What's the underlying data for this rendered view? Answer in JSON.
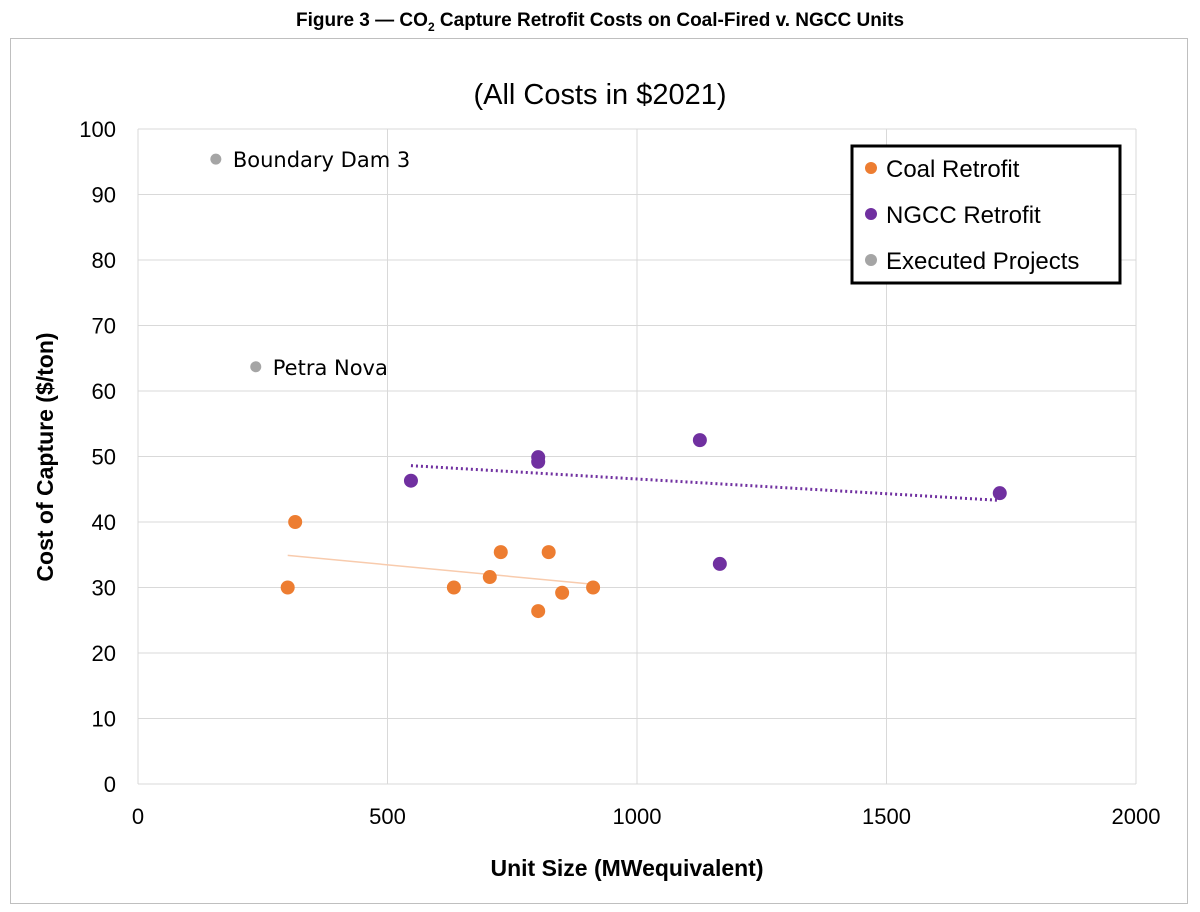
{
  "figure_title": {
    "prefix": "Figure 3 — CO",
    "sub": "2",
    "suffix": " Capture Retrofit Costs on Coal-Fired v. NGCC Units"
  },
  "chart_data": {
    "type": "scatter",
    "title": "(All Costs in $2021)",
    "xlabel": "Unit Size (MWequivalent)",
    "ylabel": "Cost of Capture ($/ton)",
    "xlim": [
      0,
      2000
    ],
    "ylim": [
      0,
      100
    ],
    "xticks": [
      0,
      500,
      1000,
      1500,
      2000
    ],
    "yticks": [
      0,
      10,
      20,
      30,
      40,
      50,
      60,
      70,
      80,
      90,
      100
    ],
    "grid": true,
    "legend_position": "top-right",
    "series": [
      {
        "name": "Coal Retrofit",
        "color": "#ed7d31",
        "points": [
          [
            300,
            30
          ],
          [
            315,
            40
          ],
          [
            633,
            30
          ],
          [
            705,
            31.6
          ],
          [
            727,
            35.4
          ],
          [
            823,
            35.4
          ],
          [
            802,
            26.4
          ],
          [
            850,
            29.2
          ],
          [
            912,
            30
          ]
        ],
        "trendline": {
          "style": "solid-thin",
          "color": "#f8cbad",
          "from": [
            300,
            34.9
          ],
          "to": [
            912,
            30.5
          ]
        }
      },
      {
        "name": "NGCC Retrofit",
        "color": "#7030a0",
        "points": [
          [
            547,
            46.3
          ],
          [
            802,
            49.9
          ],
          [
            802,
            49.2
          ],
          [
            1126,
            52.5
          ],
          [
            1166,
            33.6
          ],
          [
            1727,
            44.4
          ]
        ],
        "trendline": {
          "style": "dotted",
          "color": "#7030a0",
          "from": [
            547,
            48.6
          ],
          "to": [
            1727,
            43.3
          ]
        }
      },
      {
        "name": "Executed Projects",
        "color": "#a5a5a5",
        "points": [
          [
            156,
            95.4
          ],
          [
            236,
            63.7
          ]
        ],
        "labels": [
          "Boundary Dam 3",
          "Petra Nova"
        ]
      }
    ]
  }
}
